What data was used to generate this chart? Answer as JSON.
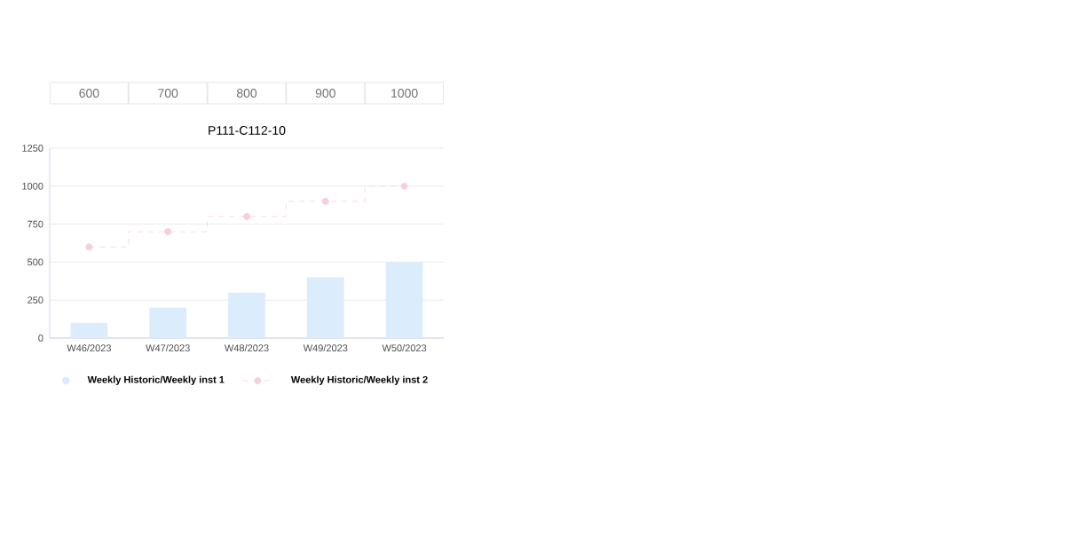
{
  "chart_data": {
    "type": "bar",
    "title": "P111-C112-10",
    "categories": [
      "W46/2023",
      "W47/2023",
      "W48/2023",
      "W49/2023",
      "W50/2023"
    ],
    "series": [
      {
        "name": "Weekly Historic/Weekly inst 1",
        "color": "#dbedfc",
        "values": [
          100,
          200,
          300,
          400,
          500
        ]
      },
      {
        "name": "Weekly Historic/Weekly inst 2",
        "type": "step",
        "color": "#f7cfdc",
        "values": [
          600,
          700,
          800,
          900,
          1000
        ],
        "value_labels": [
          "600",
          "700",
          "800",
          "900",
          "1000"
        ]
      }
    ],
    "ylim": [
      0,
      1250
    ],
    "yticks": [
      0,
      250,
      500,
      750,
      1000,
      1250
    ],
    "grid": "y",
    "legend": "bottom",
    "marker": "circle",
    "line_style": "dashed"
  }
}
